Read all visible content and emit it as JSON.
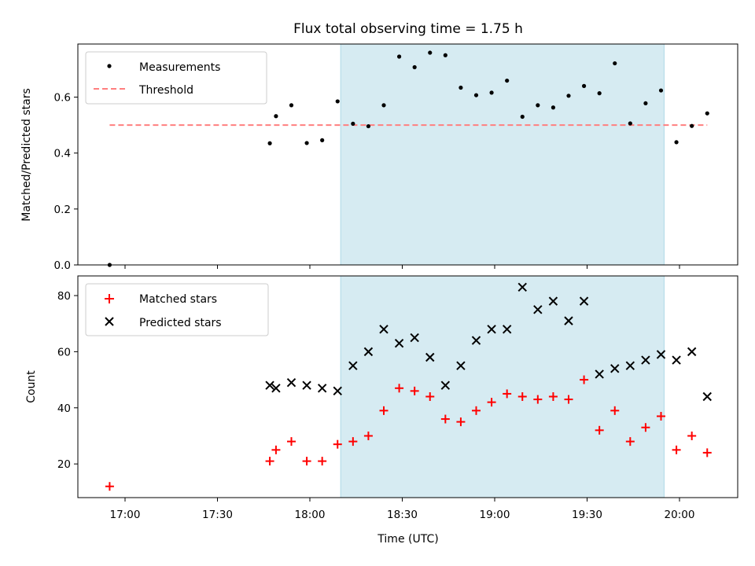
{
  "chart_data": [
    {
      "type": "scatter",
      "title": "Flux total observing time = 1.75 h",
      "xlabel": "",
      "ylabel": "Matched/Predicted stars",
      "ylim": [
        0,
        0.79
      ],
      "yticks": [
        0.0,
        0.2,
        0.4,
        0.6
      ],
      "ytick_labels": [
        "0.0",
        "0.2",
        "0.4",
        "0.6"
      ],
      "grid": false,
      "legend": "top-left",
      "shaded_span": {
        "from": "18:10",
        "to": "19:55",
        "color": "#add8e6"
      },
      "series": [
        {
          "name": "Measurements",
          "marker": "dot",
          "color": "#000000",
          "x": [
            "16:55",
            "17:47",
            "17:49",
            "17:54",
            "17:59",
            "18:04",
            "18:09",
            "18:14",
            "18:19",
            "18:24",
            "18:29",
            "18:34",
            "18:39",
            "18:44",
            "18:49",
            "18:54",
            "18:59",
            "19:04",
            "19:09",
            "19:14",
            "19:19",
            "19:24",
            "19:29",
            "19:34",
            "19:39",
            "19:44",
            "19:49",
            "19:54",
            "19:59",
            "20:04",
            "20:09"
          ],
          "y": [
            0.0,
            0.435,
            0.532,
            0.571,
            0.436,
            0.446,
            0.585,
            0.505,
            0.496,
            0.571,
            0.745,
            0.707,
            0.759,
            0.75,
            0.634,
            0.607,
            0.616,
            0.659,
            0.53,
            0.571,
            0.563,
            0.605,
            0.64,
            0.614,
            0.721,
            0.506,
            0.578,
            0.624,
            0.439,
            0.497,
            0.542
          ]
        },
        {
          "name": "Threshold",
          "marker": "dashed-line",
          "color": "#ff7f7f",
          "x": [
            "16:55",
            "20:09"
          ],
          "y": [
            0.5,
            0.5
          ]
        }
      ]
    },
    {
      "type": "scatter",
      "title": "",
      "xlabel": "Time (UTC)",
      "ylabel": "Count",
      "ylim": [
        8,
        87
      ],
      "yticks": [
        20,
        40,
        60,
        80
      ],
      "ytick_labels": [
        "20",
        "40",
        "60",
        "80"
      ],
      "x_tick_labels": [
        "17:00",
        "17:30",
        "18:00",
        "18:30",
        "19:00",
        "19:30",
        "20:00"
      ],
      "x_tick_times": [
        "17:00",
        "17:30",
        "18:00",
        "18:30",
        "19:00",
        "19:30",
        "20:00"
      ],
      "grid": false,
      "legend": "top-left",
      "shaded_span": {
        "from": "18:10",
        "to": "19:55",
        "color": "#add8e6"
      },
      "series": [
        {
          "name": "Matched stars",
          "marker": "plus",
          "color": "#ff0000",
          "x": [
            "16:55",
            "17:47",
            "17:49",
            "17:54",
            "17:59",
            "18:04",
            "18:09",
            "18:14",
            "18:19",
            "18:24",
            "18:29",
            "18:34",
            "18:39",
            "18:44",
            "18:49",
            "18:54",
            "18:59",
            "19:04",
            "19:09",
            "19:14",
            "19:19",
            "19:24",
            "19:29",
            "19:34",
            "19:39",
            "19:44",
            "19:49",
            "19:54",
            "19:59",
            "20:04",
            "20:09"
          ],
          "y": [
            12,
            21,
            25,
            28,
            21,
            21,
            27,
            28,
            30,
            39,
            47,
            46,
            44,
            36,
            35,
            39,
            42,
            45,
            44,
            43,
            44,
            43,
            50,
            32,
            39,
            28,
            33,
            37,
            25,
            30,
            24
          ]
        },
        {
          "name": "Predicted stars",
          "marker": "x",
          "color": "#000000",
          "x": [
            "17:47",
            "17:49",
            "17:54",
            "17:59",
            "18:04",
            "18:09",
            "18:14",
            "18:19",
            "18:24",
            "18:29",
            "18:34",
            "18:39",
            "18:44",
            "18:49",
            "18:54",
            "18:59",
            "19:04",
            "19:09",
            "19:14",
            "19:19",
            "19:24",
            "19:29",
            "19:34",
            "19:39",
            "19:44",
            "19:49",
            "19:54",
            "19:59",
            "20:04",
            "20:09"
          ],
          "y": [
            48,
            47,
            49,
            48,
            47,
            46,
            55,
            60,
            68,
            63,
            65,
            58,
            48,
            55,
            64,
            68,
            68,
            83,
            75,
            78,
            71,
            78,
            52,
            54,
            55,
            57,
            59,
            57,
            60,
            44
          ]
        }
      ]
    }
  ]
}
